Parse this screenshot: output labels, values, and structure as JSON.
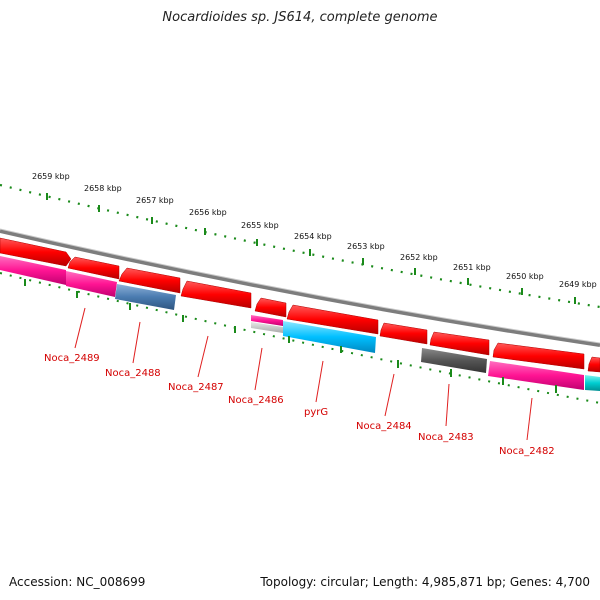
{
  "title": "Nocardioides sp. JS614, complete genome",
  "footer": {
    "accession": "Accession: NC_008699",
    "summary": "Topology: circular; Length: 4,985,871 bp; Genes: 4,700"
  },
  "colors": {
    "backbone": "#8c8c8c",
    "forward_gene": "#ff0000",
    "reverse_gene": "#ff1493",
    "tick_dots": "#1a8a1a",
    "gene_label": "#d40000"
  },
  "scale_labels": [
    "2659 kbp",
    "2658 kbp",
    "2657 kbp",
    "2656 kbp",
    "2655 kbp",
    "2654 kbp",
    "2653 kbp",
    "2652 kbp",
    "2651 kbp",
    "2650 kbp",
    "2649 kbp"
  ],
  "gene_labels": [
    "Noca_2489",
    "Noca_2488",
    "Noca_2487",
    "Noca_2486",
    "pyrG",
    "Noca_2484",
    "Noca_2483",
    "Noca_2482"
  ]
}
